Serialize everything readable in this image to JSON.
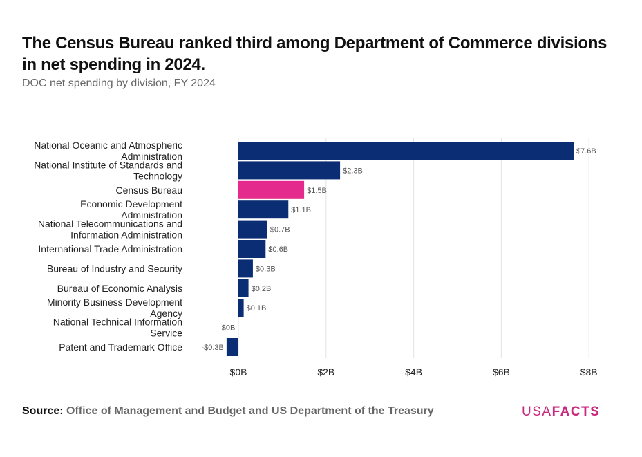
{
  "title": "The Census Bureau ranked third among Department of Commerce divisions in net spending in 2024.",
  "subtitle": "DOC net spending by division, FY 2024",
  "source_label": "Source:",
  "source_text": "Office of Management and Budget and US Department of the Treasury",
  "logo": {
    "usa": "USA",
    "facts": "FACTS"
  },
  "colors": {
    "default_bar": "#0b2d74",
    "highlight_bar": "#e42a8c",
    "grid": "#e3e3e3",
    "label": "#555555"
  },
  "chart_data": {
    "type": "bar",
    "orientation": "horizontal",
    "title": "The Census Bureau ranked third among Department of Commerce divisions in net spending in 2024.",
    "subtitle": "DOC net spending by division, FY 2024",
    "xlabel": "",
    "ylabel": "",
    "xlim": [
      -0.3,
      8
    ],
    "xticks": [
      0,
      2,
      4,
      6,
      8
    ],
    "xtick_labels": [
      "$0B",
      "$2B",
      "$4B",
      "$6B",
      "$8B"
    ],
    "grid": true,
    "highlight": "Census Bureau",
    "categories": [
      [
        "National Oceanic and Atmospheric",
        "Administration"
      ],
      [
        "National Institute of Standards and",
        "Technology"
      ],
      [
        "Census Bureau"
      ],
      [
        "Economic Development",
        "Administration"
      ],
      [
        "National Telecommunications and",
        "Information Administration"
      ],
      [
        "International Trade Administration"
      ],
      [
        "Bureau of Industry and Security"
      ],
      [
        "Bureau of Economic Analysis"
      ],
      [
        "Minority Business Development",
        "Agency"
      ],
      [
        "National Technical Information",
        "Service"
      ],
      [
        "Patent and Trademark Office"
      ]
    ],
    "values": [
      7.65,
      2.32,
      1.5,
      1.14,
      0.66,
      0.62,
      0.33,
      0.23,
      0.12,
      -0.01,
      -0.27
    ],
    "data_labels": [
      "$7.6B",
      "$2.3B",
      "$1.5B",
      "$1.1B",
      "$0.7B",
      "$0.6B",
      "$0.3B",
      "$0.2B",
      "$0.1B",
      "-$0B",
      "-$0.3B"
    ]
  }
}
